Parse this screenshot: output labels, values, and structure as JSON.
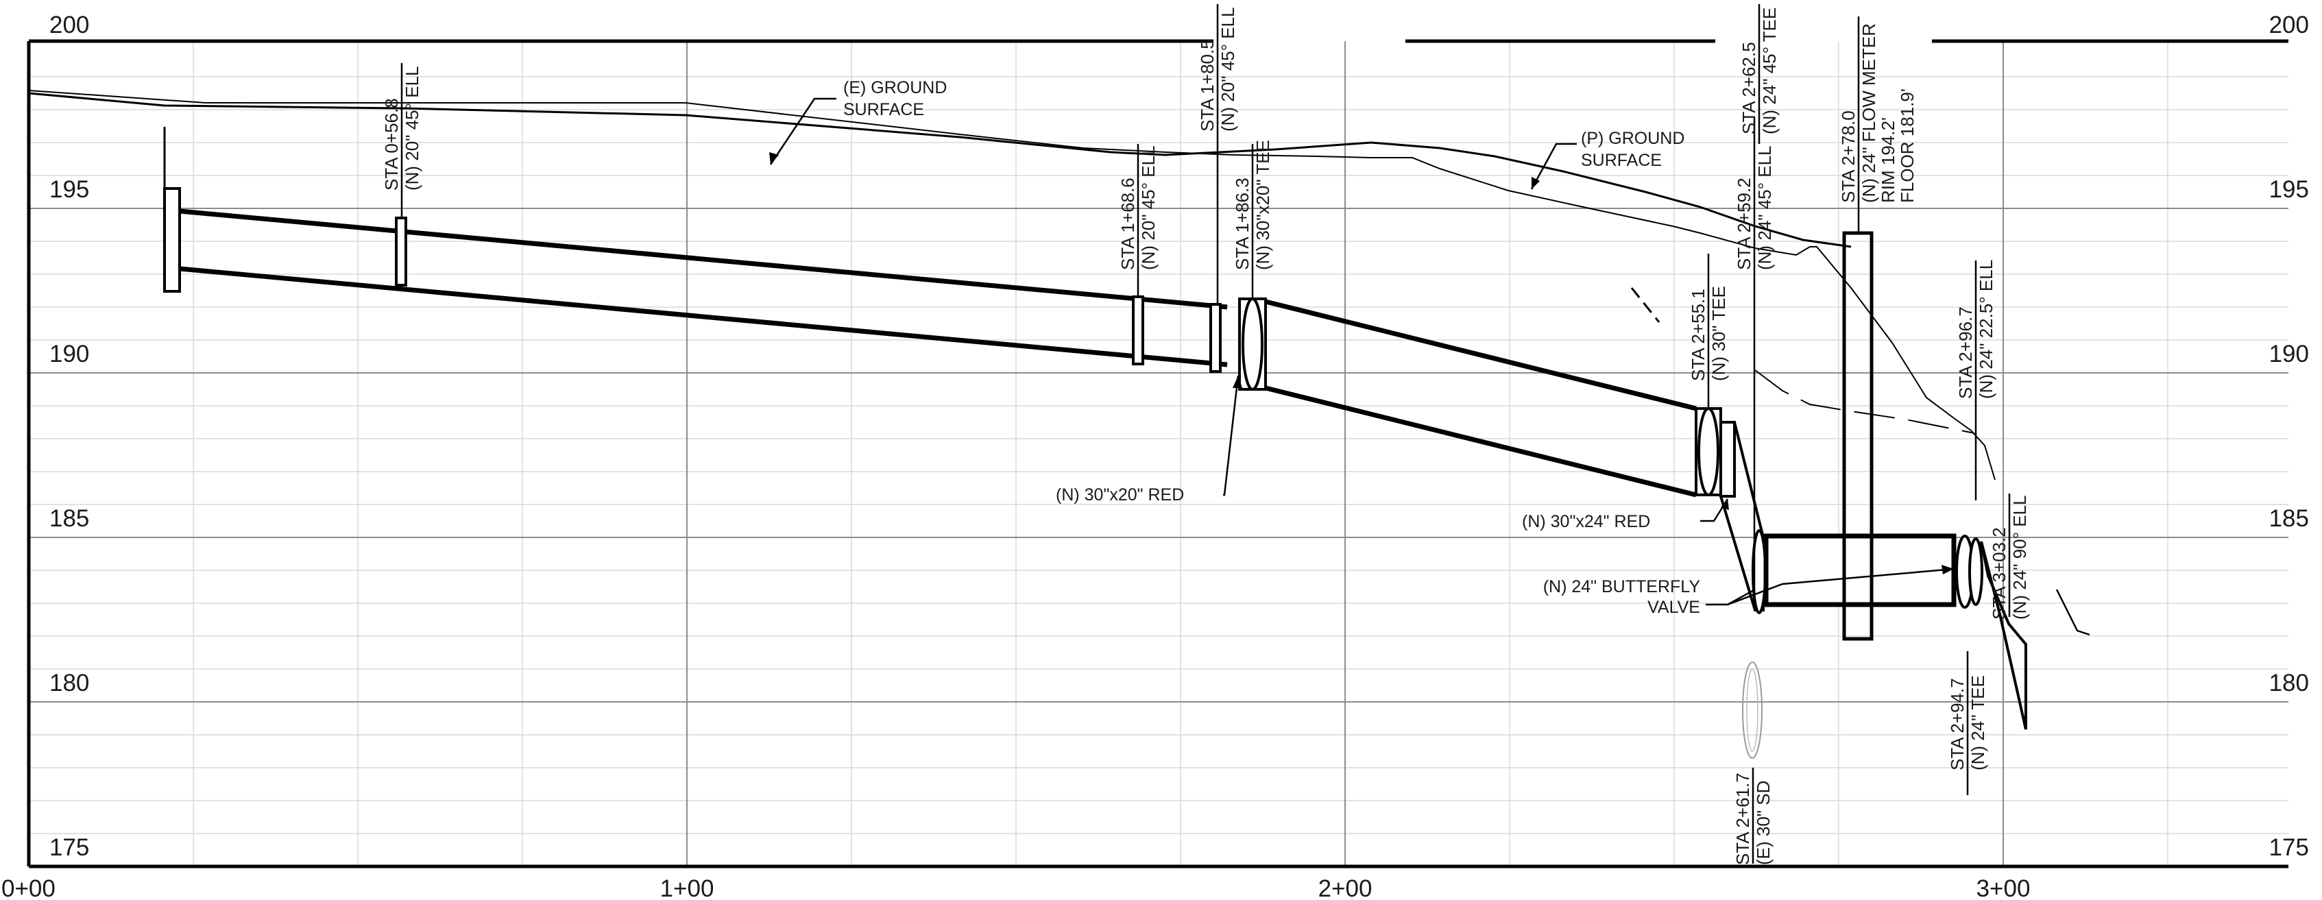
{
  "profile": {
    "elevation_labels": [
      "200",
      "195",
      "190",
      "185",
      "180",
      "175"
    ],
    "station_labels": [
      "0+00",
      "1+00",
      "2+00",
      "3+00"
    ]
  },
  "callouts": {
    "existing_ground": [
      "(E) GROUND",
      "SURFACE"
    ],
    "proposed_ground": [
      "(P) GROUND",
      "SURFACE"
    ],
    "reducer_30x20": "(N) 30\"x20\" RED",
    "reducer_30x24": "(N) 30\"x24\" RED",
    "butterfly_valve": [
      "(N) 24\" BUTTERFLY",
      "VALVE"
    ]
  },
  "station_notes": {
    "sta_0_56_8": [
      "STA 0+56.8",
      "(N) 20\" 45° ELL"
    ],
    "sta_1_68_6": [
      "STA 1+68.6",
      "(N) 20\" 45° ELL"
    ],
    "sta_1_80_5": [
      "STA 1+80.5",
      "(N) 20\" 45° ELL"
    ],
    "sta_1_86_3": [
      "STA 1+86.3",
      "(N) 30\"x20\" TEE"
    ],
    "sta_2_55_1": [
      "STA 2+55.1",
      "(N) 30\" TEE"
    ],
    "sta_2_59_2": [
      "STA 2+59.2",
      "(N) 24\" 45° ELL"
    ],
    "sta_2_62_5": [
      "STA 2+62.5",
      "(N) 24\" 45° TEE"
    ],
    "sta_2_61_7": [
      "STA 2+61.7",
      "(E) 30\" SD"
    ],
    "sta_2_78_0": [
      "STA 2+78.0",
      "(N) 24\" FLOW METER",
      "RIM 194.2'",
      "FLOOR 181.9'"
    ],
    "sta_2_96_7": [
      "STA 2+96.7",
      "(N) 24\" 22.5° ELL"
    ],
    "sta_2_94_7": [
      "STA 2+94.7",
      "(N) 24\" TEE"
    ],
    "sta_3_03_2": [
      "STA 3+03.2",
      "(N) 24\" 90° ELL"
    ]
  }
}
